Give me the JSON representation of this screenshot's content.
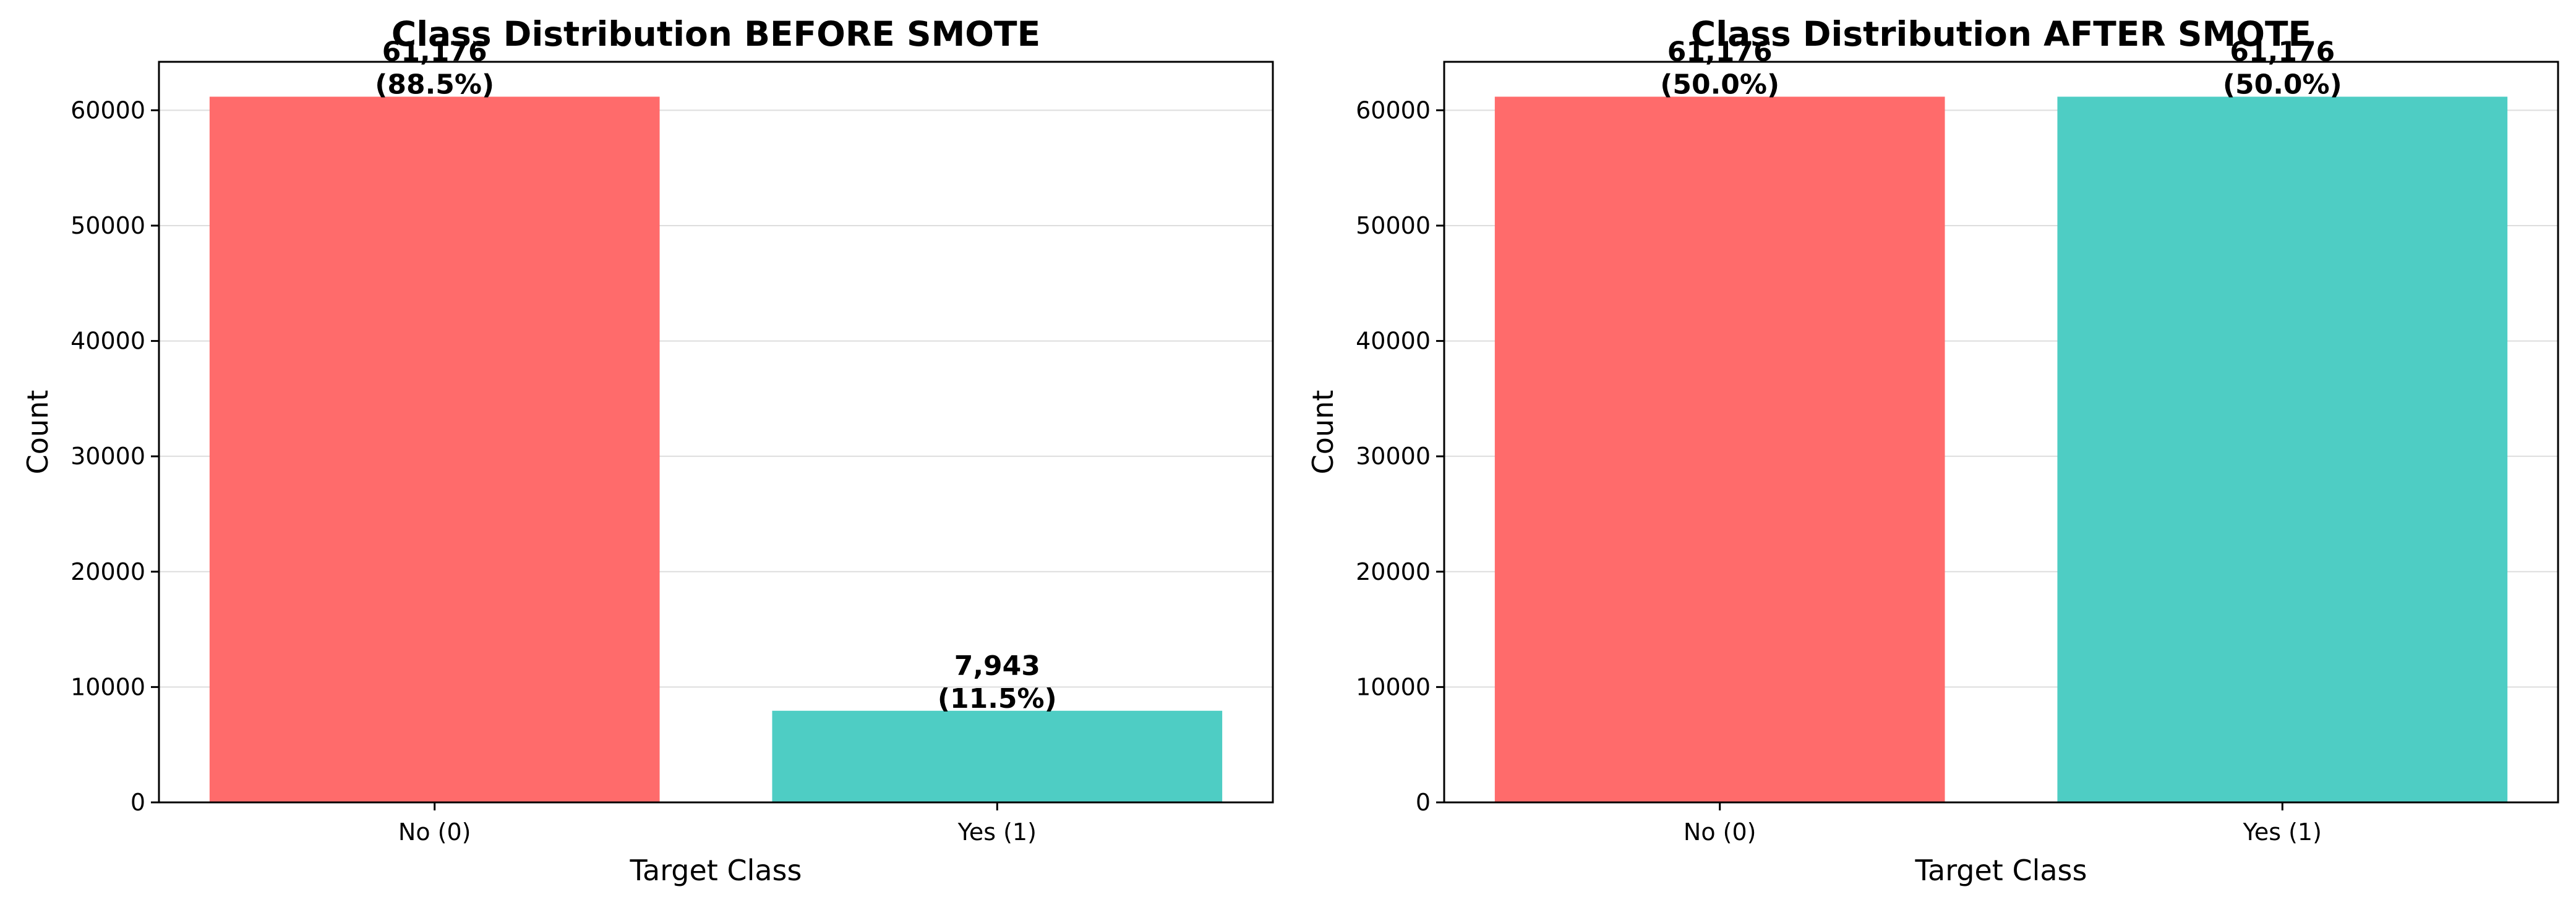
{
  "chart_data": [
    {
      "type": "bar",
      "title": "Class Distribution BEFORE SMOTE",
      "xlabel": "Target Class",
      "ylabel": "Count",
      "categories": [
        "No (0)",
        "Yes (1)"
      ],
      "values": [
        61176,
        7943
      ],
      "value_labels": [
        "61,176\n(88.5%)",
        "7,943\n(11.5%)"
      ],
      "colors": [
        "#FF6B6B",
        "#4ECDC4"
      ],
      "ylim": [
        0,
        64200
      ],
      "yticks": [
        0,
        10000,
        20000,
        30000,
        40000,
        50000,
        60000
      ],
      "grid": "y"
    },
    {
      "type": "bar",
      "title": "Class Distribution AFTER SMOTE",
      "xlabel": "Target Class",
      "ylabel": "Count",
      "categories": [
        "No (0)",
        "Yes (1)"
      ],
      "values": [
        61176,
        61176
      ],
      "value_labels": [
        "61,176\n(50.0%)",
        "61,176\n(50.0%)"
      ],
      "colors": [
        "#FF6B6B",
        "#4ECDC4"
      ],
      "ylim": [
        0,
        64200
      ],
      "yticks": [
        0,
        10000,
        20000,
        30000,
        40000,
        50000,
        60000
      ],
      "grid": "y"
    }
  ]
}
